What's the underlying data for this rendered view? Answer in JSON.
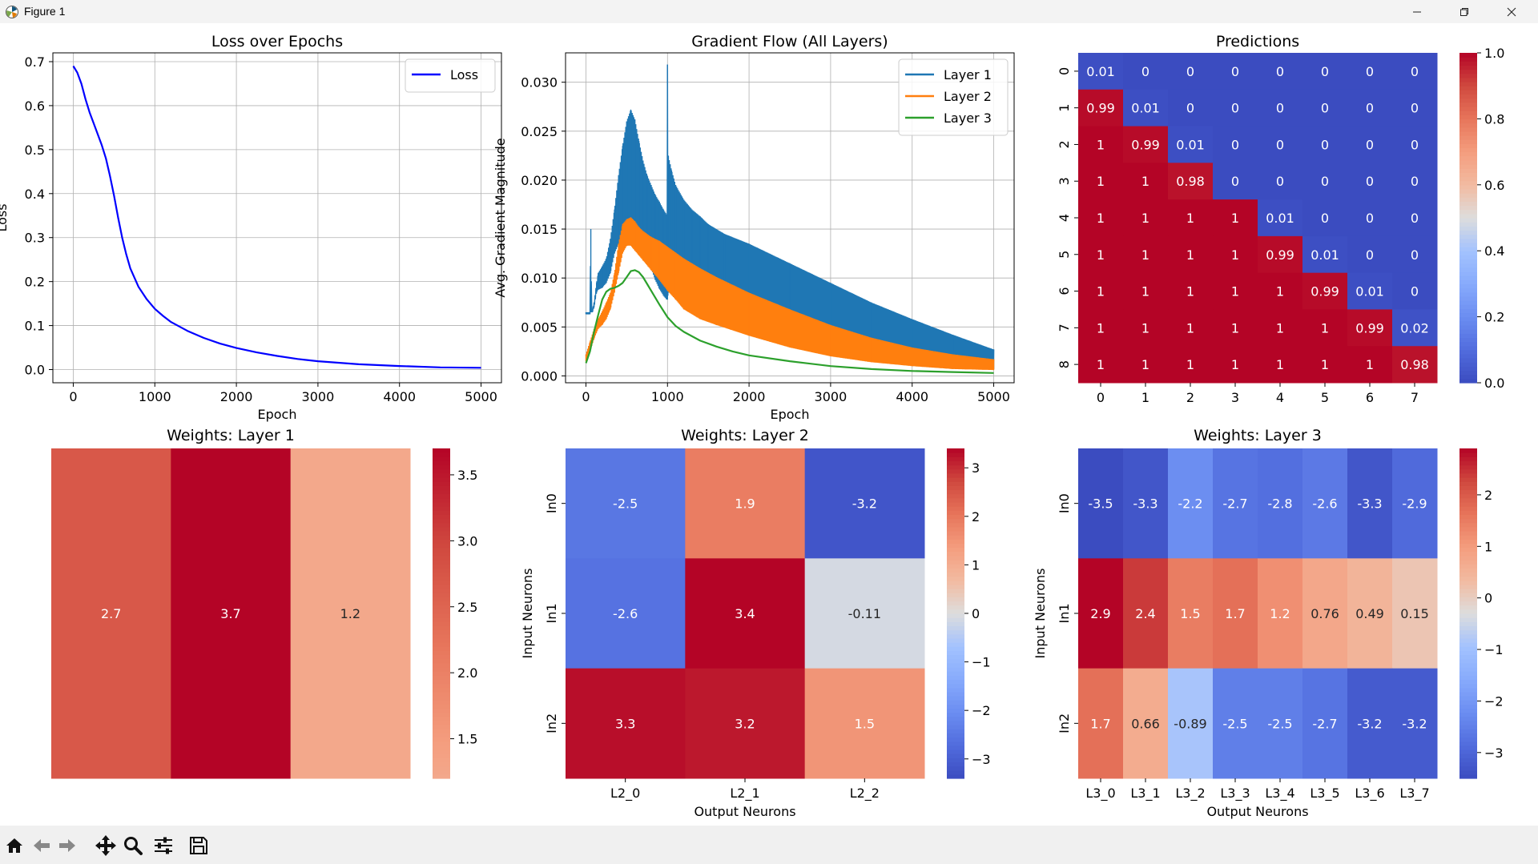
{
  "window": {
    "title": "Figure 1",
    "icon": "matplotlib-icon",
    "controls": [
      "minimize-icon",
      "restore-icon",
      "close-icon"
    ]
  },
  "toolbar": {
    "tools": [
      "home-icon",
      "back-arrow-icon",
      "forward-arrow-icon",
      "pan-move-icon",
      "zoom-magnifier-icon",
      "configure-subplots-icon",
      "save-disk-icon"
    ]
  },
  "chart_data": [
    {
      "type": "line",
      "title": "Loss over Epochs",
      "xlabel": "Epoch",
      "ylabel": "Loss",
      "xlim": [
        -250,
        5250
      ],
      "ylim": [
        -0.03,
        0.72
      ],
      "xticks": [
        0,
        1000,
        2000,
        3000,
        4000,
        5000
      ],
      "yticks": [
        0.0,
        0.1,
        0.2,
        0.3,
        0.4,
        0.5,
        0.6,
        0.7
      ],
      "grid": true,
      "legend": "top-right",
      "series": [
        {
          "name": "Loss",
          "color": "#0000ff",
          "x": [
            0,
            50,
            100,
            150,
            200,
            250,
            300,
            350,
            400,
            450,
            500,
            550,
            600,
            650,
            700,
            800,
            900,
            1000,
            1100,
            1200,
            1400,
            1600,
            1800,
            2000,
            2250,
            2500,
            2750,
            3000,
            3500,
            4000,
            4500,
            5000
          ],
          "y": [
            0.69,
            0.675,
            0.65,
            0.615,
            0.585,
            0.56,
            0.535,
            0.51,
            0.48,
            0.44,
            0.395,
            0.345,
            0.3,
            0.262,
            0.23,
            0.188,
            0.16,
            0.138,
            0.122,
            0.108,
            0.088,
            0.072,
            0.059,
            0.049,
            0.039,
            0.031,
            0.024,
            0.019,
            0.012,
            0.008,
            0.005,
            0.004
          ]
        }
      ]
    },
    {
      "type": "line",
      "title": "Gradient Flow (All Layers)",
      "xlabel": "Epoch",
      "ylabel": "Avg. Gradient Magnitude",
      "xlim": [
        -250,
        5250
      ],
      "ylim": [
        -0.0007,
        0.033
      ],
      "xticks": [
        0,
        1000,
        2000,
        3000,
        4000,
        5000
      ],
      "yticks": [
        0.0,
        0.005,
        0.01,
        0.015,
        0.02,
        0.025,
        0.03
      ],
      "ytick_labels": [
        "0.000",
        "0.005",
        "0.010",
        "0.015",
        "0.020",
        "0.025",
        "0.030"
      ],
      "grid": true,
      "legend": "top-right",
      "series": [
        {
          "name": "Layer 1",
          "color": "#1f77b4",
          "x": [
            0,
            50,
            60,
            70,
            80,
            100,
            130,
            150,
            200,
            250,
            300,
            350,
            400,
            450,
            500,
            550,
            600,
            650,
            700,
            750,
            800,
            850,
            900,
            950,
            990,
            1000,
            1010,
            1050,
            1100,
            1200,
            1300,
            1400,
            1500,
            1700,
            2000,
            2500,
            3000,
            3500,
            4000,
            4500,
            5000
          ],
          "upper": [
            0.0065,
            0.0065,
            0.015,
            0.007,
            0.0068,
            0.0075,
            0.0095,
            0.0105,
            0.0112,
            0.012,
            0.014,
            0.017,
            0.0205,
            0.0235,
            0.026,
            0.0272,
            0.0262,
            0.024,
            0.022,
            0.0205,
            0.0195,
            0.0185,
            0.0178,
            0.017,
            0.0165,
            0.0318,
            0.0225,
            0.021,
            0.0195,
            0.018,
            0.017,
            0.0163,
            0.0155,
            0.0145,
            0.0135,
            0.0115,
            0.0095,
            0.0075,
            0.0058,
            0.0042,
            0.0027
          ],
          "lower": [
            0.0063,
            0.0063,
            0.0065,
            0.0065,
            0.0065,
            0.007,
            0.0085,
            0.0088,
            0.009,
            0.0095,
            0.0105,
            0.0125,
            0.0135,
            0.0145,
            0.0155,
            0.0158,
            0.015,
            0.0138,
            0.013,
            0.012,
            0.011,
            0.0098,
            0.0089,
            0.0082,
            0.0078,
            0.0078,
            0.0085,
            0.0095,
            0.0092,
            0.0085,
            0.0078,
            0.0072,
            0.0066,
            0.0058,
            0.0049,
            0.0037,
            0.0027,
            0.0019,
            0.0013,
            0.0009,
            0.0007
          ]
        },
        {
          "name": "Layer 2",
          "color": "#ff7f0e",
          "x": [
            0,
            50,
            100,
            150,
            200,
            250,
            300,
            350,
            400,
            450,
            500,
            550,
            600,
            650,
            700,
            800,
            900,
            1000,
            1100,
            1200,
            1400,
            1600,
            2000,
            2500,
            3000,
            3500,
            4000,
            4500,
            5000
          ],
          "upper": [
            0.0022,
            0.0035,
            0.0048,
            0.0058,
            0.0066,
            0.0075,
            0.0085,
            0.0105,
            0.0135,
            0.0155,
            0.016,
            0.0162,
            0.0158,
            0.0152,
            0.0148,
            0.0142,
            0.0138,
            0.0132,
            0.0126,
            0.012,
            0.011,
            0.0101,
            0.0085,
            0.0068,
            0.0052,
            0.0039,
            0.0029,
            0.0022,
            0.0017
          ],
          "lower": [
            0.0015,
            0.0025,
            0.0038,
            0.0048,
            0.0052,
            0.0058,
            0.0068,
            0.0085,
            0.0105,
            0.0125,
            0.0133,
            0.0133,
            0.0128,
            0.0123,
            0.0118,
            0.0108,
            0.0098,
            0.0087,
            0.0078,
            0.0068,
            0.0058,
            0.0052,
            0.0041,
            0.0029,
            0.002,
            0.0014,
            0.001,
            0.0007,
            0.0006
          ]
        },
        {
          "name": "Layer 3",
          "color": "#2ca02c",
          "x": [
            0,
            50,
            100,
            150,
            200,
            250,
            300,
            350,
            400,
            450,
            500,
            550,
            600,
            650,
            700,
            750,
            800,
            900,
            1000,
            1100,
            1200,
            1400,
            1600,
            1800,
            2000,
            2500,
            3000,
            3500,
            4000,
            4500,
            5000
          ],
          "y": [
            0.0013,
            0.0025,
            0.0045,
            0.0062,
            0.0078,
            0.0086,
            0.0089,
            0.009,
            0.0092,
            0.0095,
            0.0101,
            0.0107,
            0.0108,
            0.0106,
            0.0101,
            0.0094,
            0.0087,
            0.0073,
            0.006,
            0.0051,
            0.0045,
            0.0036,
            0.003,
            0.0025,
            0.0021,
            0.0015,
            0.001,
            0.0007,
            0.0005,
            0.0004,
            0.0003
          ]
        }
      ]
    },
    {
      "type": "heatmap",
      "title": "Predictions",
      "colormap": "coolwarm",
      "vmin": 0.0,
      "vmax": 1.0,
      "x_categories": [
        "0",
        "1",
        "2",
        "3",
        "4",
        "5",
        "6",
        "7"
      ],
      "y_categories": [
        "0",
        "1",
        "2",
        "3",
        "4",
        "5",
        "6",
        "7",
        "8"
      ],
      "values": [
        [
          0.01,
          0,
          0,
          0,
          0,
          0,
          0,
          0
        ],
        [
          0.99,
          0.01,
          0,
          0,
          0,
          0,
          0,
          0
        ],
        [
          1,
          0.99,
          0.01,
          0,
          0,
          0,
          0,
          0
        ],
        [
          1,
          1,
          0.98,
          0,
          0,
          0,
          0,
          0
        ],
        [
          1,
          1,
          1,
          1,
          0.01,
          0,
          0,
          0
        ],
        [
          1,
          1,
          1,
          1,
          0.99,
          0.01,
          0,
          0
        ],
        [
          1,
          1,
          1,
          1,
          1,
          0.99,
          0.01,
          0
        ],
        [
          1,
          1,
          1,
          1,
          1,
          1,
          0.99,
          0.02
        ],
        [
          1,
          1,
          1,
          1,
          1,
          1,
          1,
          0.98
        ]
      ],
      "colorbar_ticks": [
        0.0,
        0.2,
        0.4,
        0.6,
        0.8,
        1.0
      ],
      "colorbar_tick_labels": [
        "0.0",
        "0.2",
        "0.4",
        "0.6",
        "0.8",
        "1.0"
      ]
    },
    {
      "type": "heatmap",
      "title": "Weights: Layer 1",
      "colormap": "coolwarm",
      "vmin": -3.7,
      "vmax": 3.7,
      "cbar_min": 1.2,
      "cbar_max": 3.7,
      "x_categories": [],
      "y_categories": [],
      "values": [
        [
          2.7,
          3.7,
          1.2
        ]
      ],
      "colorbar_ticks": [
        1.5,
        2.0,
        2.5,
        3.0,
        3.5
      ],
      "colorbar_tick_labels": [
        "1.5",
        "2.0",
        "2.5",
        "3.0",
        "3.5"
      ]
    },
    {
      "type": "heatmap",
      "title": "Weights: Layer 2",
      "xlabel": "Output Neurons",
      "ylabel": "Input Neurons",
      "colormap": "coolwarm",
      "vmin": -3.4,
      "vmax": 3.4,
      "x_categories": [
        "L2_0",
        "L2_1",
        "L2_2"
      ],
      "y_categories": [
        "In0",
        "In1",
        "In2"
      ],
      "values": [
        [
          -2.5,
          1.9,
          -3.2
        ],
        [
          -2.6,
          3.4,
          -0.11
        ],
        [
          3.3,
          3.2,
          1.5
        ]
      ],
      "colorbar_ticks": [
        -3,
        -2,
        -1,
        0,
        1,
        2,
        3
      ],
      "colorbar_tick_labels": [
        "−3",
        "−2",
        "−1",
        "0",
        "1",
        "2",
        "3"
      ]
    },
    {
      "type": "heatmap",
      "title": "Weights: Layer 3",
      "xlabel": "Output Neurons",
      "ylabel": "Input Neurons",
      "colormap": "coolwarm",
      "vmin": -3.5,
      "vmax": 2.9,
      "x_categories": [
        "L3_0",
        "L3_1",
        "L3_2",
        "L3_3",
        "L3_4",
        "L3_5",
        "L3_6",
        "L3_7"
      ],
      "y_categories": [
        "In0",
        "In1",
        "In2"
      ],
      "values": [
        [
          -3.5,
          -3.3,
          -2.2,
          -2.7,
          -2.8,
          -2.6,
          -3.3,
          -2.9
        ],
        [
          2.9,
          2.4,
          1.5,
          1.7,
          1.2,
          0.76,
          0.49,
          0.15
        ],
        [
          1.7,
          0.66,
          -0.89,
          -2.5,
          -2.5,
          -2.7,
          -3.2,
          -3.2
        ]
      ],
      "colorbar_ticks": [
        -3,
        -2,
        -1,
        0,
        1,
        2
      ],
      "colorbar_tick_labels": [
        "−3",
        "−2",
        "−1",
        "0",
        "1",
        "2"
      ]
    }
  ]
}
